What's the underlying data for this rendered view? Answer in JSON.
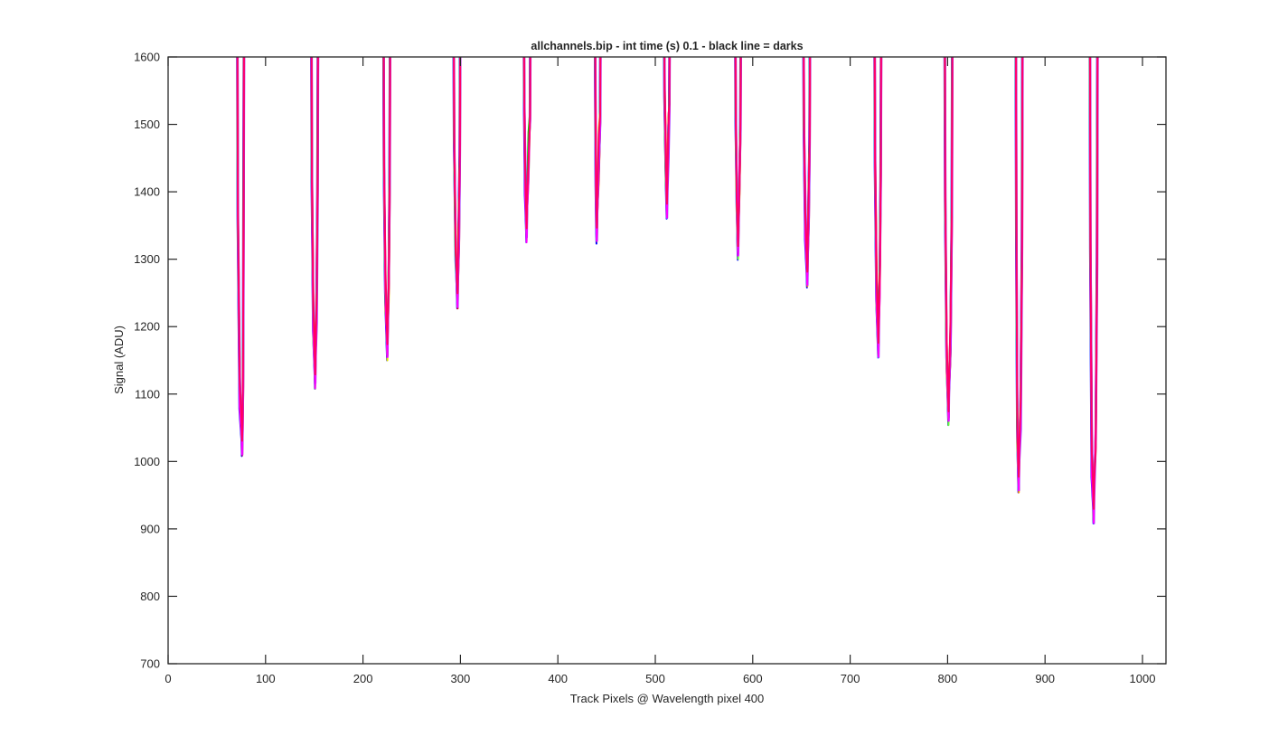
{
  "chart_data": {
    "type": "line",
    "title": "allchannels.bip - int time (s) 0.1 - black line = darks",
    "xlabel": "Track Pixels @ Wavelength pixel 400",
    "ylabel": "Signal (ADU)",
    "xlim": [
      0,
      1024
    ],
    "ylim": [
      700,
      1600
    ],
    "xticks": [
      0,
      100,
      200,
      300,
      400,
      500,
      600,
      700,
      800,
      900,
      1000
    ],
    "yticks": [
      700,
      800,
      900,
      1000,
      1100,
      1200,
      1300,
      1400,
      1500,
      1600
    ],
    "grid": false,
    "legend": "none",
    "series_colors": [
      "#0000ff",
      "#3399ff",
      "#00cc00",
      "#66ff33",
      "#e6e600",
      "#ff9900",
      "#ff0000",
      "#9933ff",
      "#ff00ff",
      "#ff0066"
    ],
    "dips": [
      {
        "left_x": 71,
        "right_x": 78,
        "min_x": 76,
        "min_y": 1008
      },
      {
        "left_x": 147,
        "right_x": 154,
        "min_x": 151,
        "min_y": 1108
      },
      {
        "left_x": 221,
        "right_x": 228,
        "min_x": 225,
        "min_y": 1150
      },
      {
        "left_x": 293,
        "right_x": 300,
        "min_x": 297,
        "min_y": 1227
      },
      {
        "left_x": 365,
        "right_x": 372,
        "min_x": 368,
        "min_y": 1325
      },
      {
        "left_x": 438,
        "right_x": 444,
        "min_x": 440,
        "min_y": 1323
      },
      {
        "left_x": 509,
        "right_x": 515,
        "min_x": 512,
        "min_y": 1360
      },
      {
        "left_x": 582,
        "right_x": 588,
        "min_x": 585,
        "min_y": 1299
      },
      {
        "left_x": 652,
        "right_x": 659,
        "min_x": 656,
        "min_y": 1258
      },
      {
        "left_x": 725,
        "right_x": 732,
        "min_x": 729,
        "min_y": 1154
      },
      {
        "left_x": 797,
        "right_x": 805,
        "min_x": 801,
        "min_y": 1054
      },
      {
        "left_x": 870,
        "right_x": 877,
        "min_x": 873,
        "min_y": 954
      },
      {
        "left_x": 946,
        "right_x": 954,
        "min_x": 950,
        "min_y": 908
      }
    ]
  }
}
